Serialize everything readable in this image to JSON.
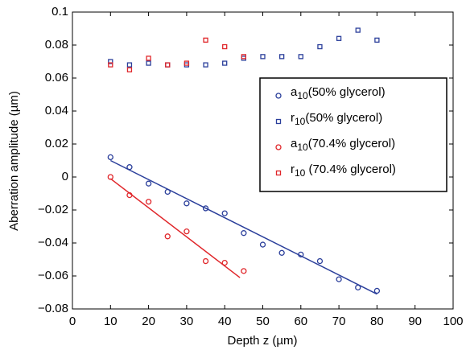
{
  "chart_data": {
    "type": "scatter",
    "xlabel": "Depth z (µm)",
    "ylabel": "Aberration amplitude (µm)",
    "xlim": [
      0,
      100
    ],
    "xticks": [
      0,
      10,
      20,
      30,
      40,
      50,
      60,
      70,
      80,
      90,
      100
    ],
    "ylim": [
      -0.08,
      0.1
    ],
    "yticks": [
      {
        "value": -0.08,
        "label": "−0.08"
      },
      {
        "value": -0.06,
        "label": "−0.06"
      },
      {
        "value": -0.04,
        "label": "−0.04"
      },
      {
        "value": -0.02,
        "label": "−0.02"
      },
      0,
      0.02,
      0.04,
      0.06,
      0.08,
      0.1
    ],
    "legend": "upper right",
    "series": [
      {
        "name": "a10(50% glycerol)",
        "color": "#2b3f9b",
        "marker": "circle",
        "x": [
          10,
          15,
          20,
          25,
          30,
          35,
          40,
          45,
          50,
          55,
          60,
          65,
          70,
          75,
          80
        ],
        "values": [
          0.012,
          0.006,
          -0.004,
          -0.009,
          -0.016,
          -0.019,
          -0.022,
          -0.034,
          -0.041,
          -0.046,
          -0.047,
          -0.051,
          -0.062,
          -0.067,
          -0.069
        ]
      },
      {
        "name": "r10(50% glycerol)",
        "color": "#2b3f9b",
        "marker": "square",
        "x": [
          10,
          15,
          20,
          25,
          30,
          35,
          40,
          45,
          50,
          55,
          60,
          65,
          70,
          75,
          80
        ],
        "values": [
          0.07,
          0.068,
          0.069,
          0.068,
          0.068,
          0.068,
          0.069,
          0.072,
          0.073,
          0.073,
          0.073,
          0.079,
          0.084,
          0.089,
          0.083
        ]
      },
      {
        "name": "a10(70.4% glycerol)",
        "color": "#e0262a",
        "marker": "circle",
        "x": [
          10,
          15,
          20,
          25,
          30,
          35,
          40,
          45
        ],
        "values": [
          0,
          -0.011,
          -0.015,
          -0.036,
          -0.033,
          -0.051,
          -0.052,
          -0.057
        ]
      },
      {
        "name": "r10 (70.4% glycerol)",
        "color": "#e0262a",
        "marker": "square",
        "x": [
          10,
          15,
          20,
          25,
          30,
          35,
          40,
          45
        ],
        "values": [
          0.068,
          0.065,
          0.072,
          0.068,
          0.069,
          0.083,
          0.079,
          0.073
        ]
      }
    ],
    "fits": [
      {
        "color": "#2b3f9b",
        "x": [
          10,
          80
        ],
        "values": [
          0.01,
          -0.071
        ]
      },
      {
        "color": "#e0262a",
        "x": [
          10,
          44
        ],
        "values": [
          -0.001,
          -0.061
        ]
      }
    ]
  }
}
